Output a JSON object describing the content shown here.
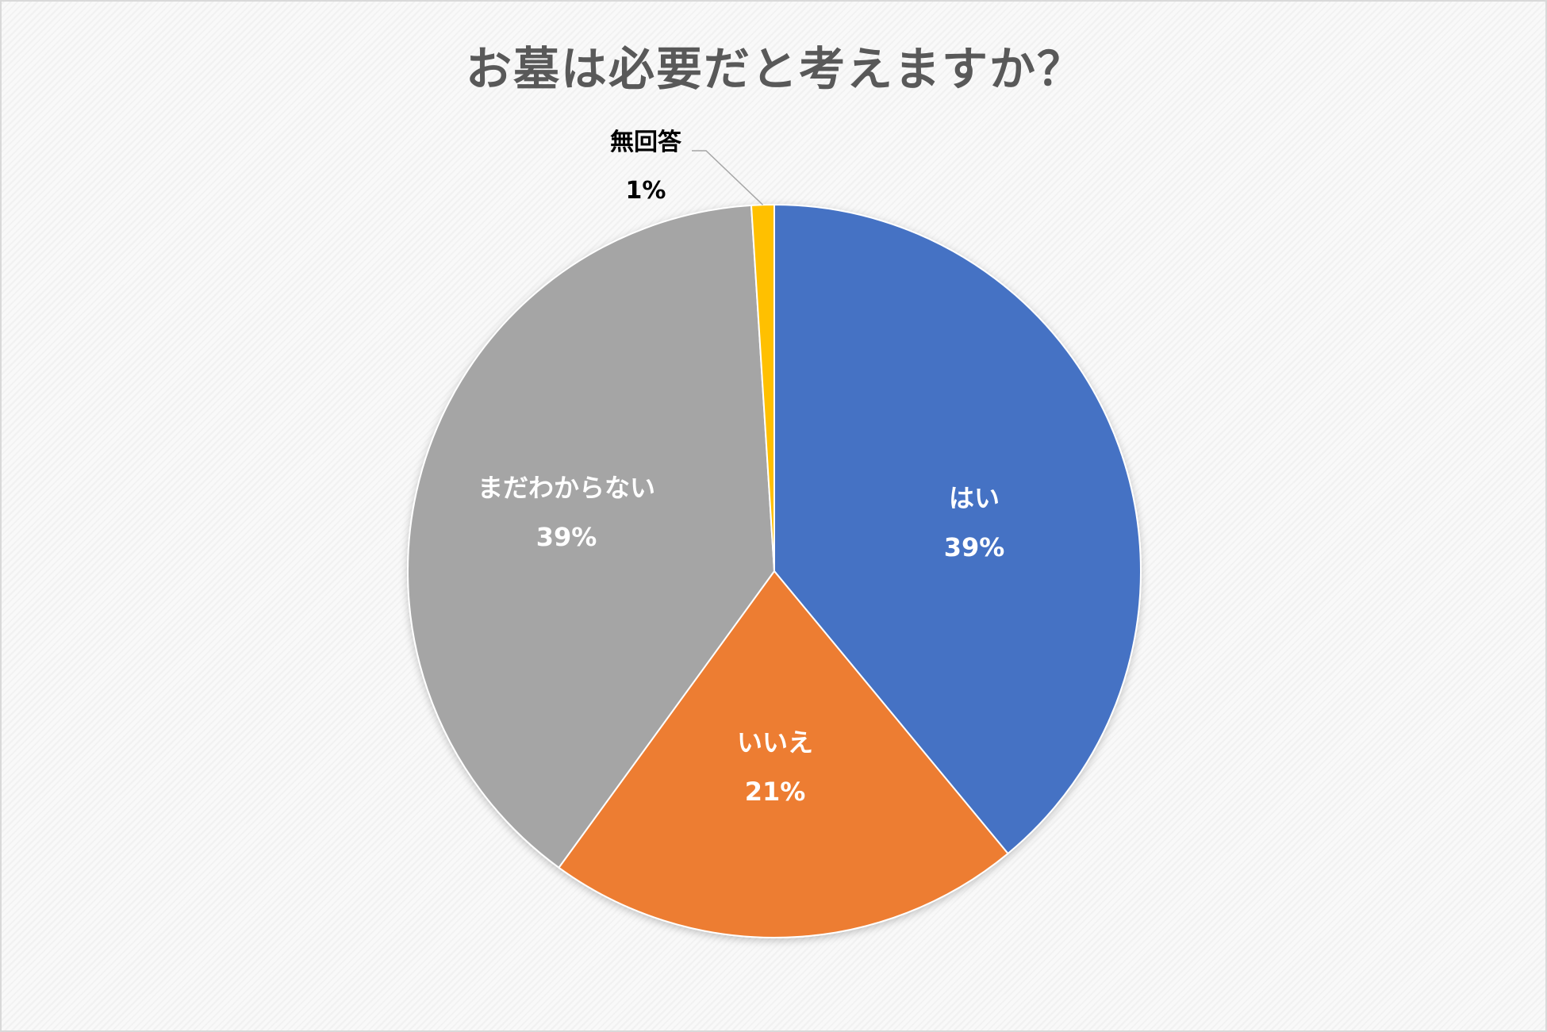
{
  "chart_data": {
    "type": "pie",
    "title": "お墓は必要だと考えますか？",
    "slices": [
      {
        "label": "はい",
        "value": 39,
        "value_label": "39%",
        "color": "#4472C4",
        "label_color": "#ffffff"
      },
      {
        "label": "いいえ",
        "value": 21,
        "value_label": "21%",
        "color": "#ED7D31",
        "label_color": "#ffffff"
      },
      {
        "label": "まだわからない",
        "value": 39,
        "value_label": "39%",
        "color": "#A5A5A5",
        "label_color": "#ffffff"
      },
      {
        "label": "無回答",
        "value": 1,
        "value_label": "1%",
        "color": "#FFC000",
        "label_color": "#000000"
      }
    ],
    "start_angle": "12 o'clock",
    "direction": "clockwise",
    "legend": "none",
    "data_labels": "category name and percentage"
  }
}
